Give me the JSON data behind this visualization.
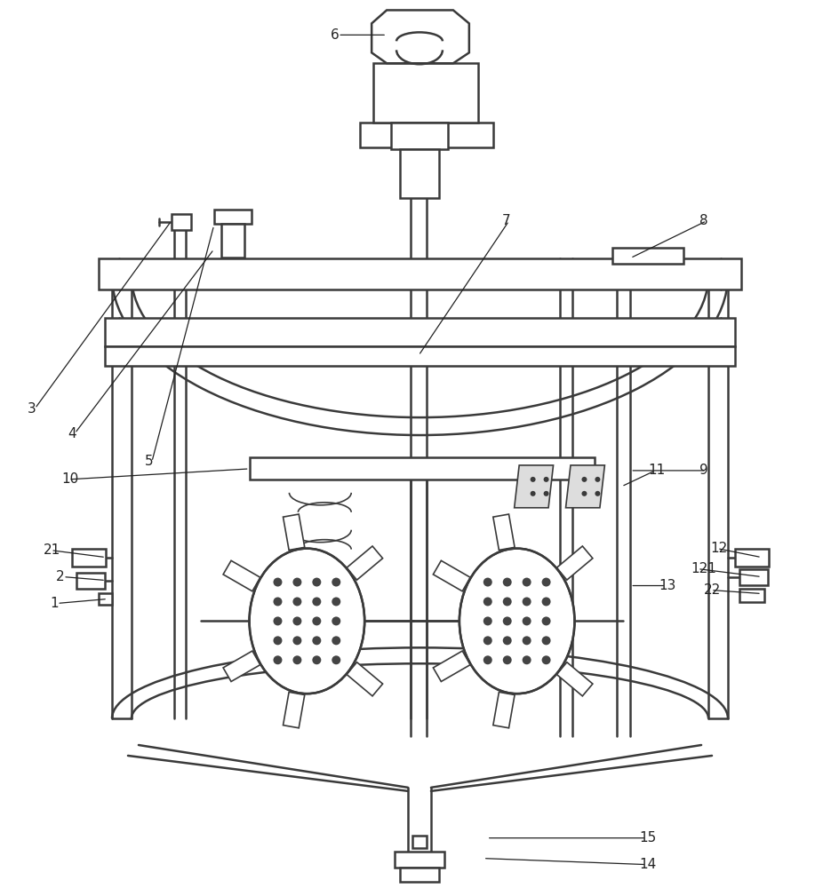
{
  "bg_color": "#ffffff",
  "lc": "#3a3a3a",
  "lw": 1.8,
  "lw_thin": 1.2
}
